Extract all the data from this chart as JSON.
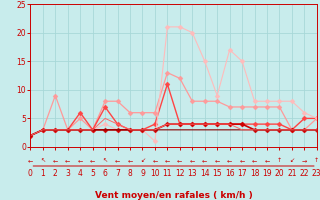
{
  "xlabel": "Vent moyen/en rafales ( km/h )",
  "xlim": [
    0,
    23
  ],
  "ylim": [
    0,
    25
  ],
  "xticks": [
    0,
    1,
    2,
    3,
    4,
    5,
    6,
    7,
    8,
    9,
    10,
    11,
    12,
    13,
    14,
    15,
    16,
    17,
    18,
    19,
    20,
    21,
    22,
    23
  ],
  "yticks": [
    0,
    5,
    10,
    15,
    20,
    25
  ],
  "bg_color": "#c8ecec",
  "grid_color": "#a8d8d8",
  "series": [
    {
      "x": [
        0,
        1,
        2,
        3,
        4,
        5,
        6,
        7,
        8,
        9,
        10,
        11,
        12,
        13,
        14,
        15,
        16,
        17,
        18,
        19,
        20,
        21,
        22,
        23
      ],
      "y": [
        2,
        3,
        9,
        3,
        5,
        3,
        8,
        8,
        6,
        6,
        6,
        13,
        12,
        8,
        8,
        8,
        7,
        7,
        7,
        7,
        7,
        3,
        3,
        5
      ],
      "color": "#ff9999",
      "marker": "D",
      "ms": 2.5,
      "lw": 0.9
    },
    {
      "x": [
        0,
        1,
        2,
        3,
        4,
        5,
        6,
        7,
        8,
        9,
        10,
        11,
        12,
        13,
        14,
        15,
        16,
        17,
        18,
        19,
        20,
        21,
        22,
        23
      ],
      "y": [
        2,
        3,
        3,
        3,
        6,
        3,
        7,
        4,
        3,
        3,
        4,
        11,
        4,
        4,
        4,
        4,
        4,
        4,
        4,
        4,
        4,
        3,
        5,
        5
      ],
      "color": "#ff4444",
      "marker": "D",
      "ms": 2.5,
      "lw": 1.0
    },
    {
      "x": [
        0,
        1,
        2,
        3,
        4,
        5,
        6,
        7,
        8,
        9,
        10,
        11,
        12,
        13,
        14,
        15,
        16,
        17,
        18,
        19,
        20,
        21,
        22,
        23
      ],
      "y": [
        2,
        3,
        3,
        3,
        3,
        3,
        4,
        3,
        3,
        3,
        1,
        21,
        21,
        20,
        15,
        9,
        17,
        15,
        8,
        8,
        8,
        8,
        6,
        5
      ],
      "color": "#ffbbbb",
      "marker": "D",
      "ms": 2.5,
      "lw": 0.8
    },
    {
      "x": [
        0,
        1,
        2,
        3,
        4,
        5,
        6,
        7,
        8,
        9,
        10,
        11,
        12,
        13,
        14,
        15,
        16,
        17,
        18,
        19,
        20,
        21,
        22,
        23
      ],
      "y": [
        2,
        3,
        3,
        3,
        3,
        3,
        3,
        3,
        3,
        3,
        3,
        4,
        4,
        4,
        4,
        4,
        4,
        4,
        3,
        3,
        3,
        3,
        3,
        3
      ],
      "color": "#cc0000",
      "marker": "D",
      "ms": 2.5,
      "lw": 1.2
    },
    {
      "x": [
        0,
        1,
        2,
        3,
        4,
        5,
        6,
        7,
        8,
        9,
        10,
        11,
        12,
        13,
        14,
        15,
        16,
        17,
        18,
        19,
        20,
        21,
        22,
        23
      ],
      "y": [
        2,
        3,
        3,
        3,
        3,
        3,
        3,
        3,
        3,
        3,
        3,
        3,
        3,
        3,
        3,
        3,
        3,
        3,
        3,
        3,
        3,
        3,
        3,
        3
      ],
      "color": "#880000",
      "marker": null,
      "ms": 0,
      "lw": 0.8
    },
    {
      "x": [
        0,
        1,
        2,
        3,
        4,
        5,
        6,
        7,
        8,
        9,
        10,
        11,
        12,
        13,
        14,
        15,
        16,
        17,
        18,
        19,
        20,
        21,
        22,
        23
      ],
      "y": [
        2,
        3,
        3,
        3,
        3,
        3,
        5,
        4,
        3,
        3,
        3,
        4,
        4,
        4,
        4,
        4,
        4,
        3,
        3,
        3,
        3,
        3,
        3,
        3
      ],
      "color": "#ff6666",
      "marker": null,
      "ms": 0,
      "lw": 0.7
    }
  ],
  "wind_arrows": [
    "←",
    "↖",
    "←",
    "←",
    "←",
    "←",
    "↖",
    "←",
    "←",
    "↙",
    "←",
    "←",
    "←",
    "←",
    "←",
    "←",
    "←",
    "←",
    "←",
    "←",
    "↑",
    "↙",
    "→",
    "↑"
  ],
  "label_color": "#cc0000",
  "tick_fontsize": 5.5,
  "xlabel_fontsize": 6.5
}
